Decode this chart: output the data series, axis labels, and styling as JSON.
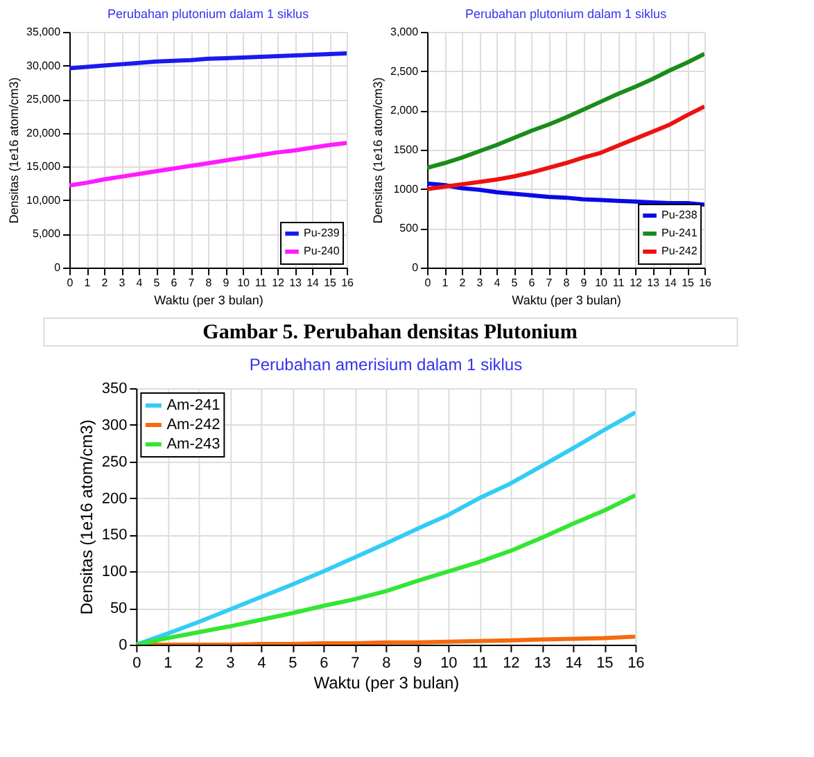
{
  "chart_data": [
    {
      "type": "line",
      "title": "Perubahan plutonium dalam 1 siklus",
      "xlabel": "Waktu (per 3 bulan)",
      "ylabel": "Densitas (1e16 atom/cm3)",
      "annotations": [
        "Gambar 5.  Perubahan densitas Plutonium"
      ],
      "x": [
        0,
        1,
        2,
        3,
        4,
        5,
        6,
        7,
        8,
        9,
        10,
        11,
        12,
        13,
        14,
        15,
        16
      ],
      "series": [
        {
          "name": "Pu-239",
          "color": "#1a1aee",
          "values": [
            29600,
            29800,
            30000,
            30200,
            30400,
            30600,
            30700,
            30800,
            31000,
            31100,
            31200,
            31300,
            31400,
            31500,
            31600,
            31700,
            31800
          ]
        },
        {
          "name": "Pu-240",
          "color": "#ff1aff",
          "values": [
            12200,
            12600,
            13100,
            13500,
            13900,
            14300,
            14700,
            15100,
            15500,
            15900,
            16300,
            16700,
            17100,
            17400,
            17800,
            18200,
            18500
          ]
        }
      ],
      "xlim": [
        0,
        16
      ],
      "xticks": [
        0,
        1,
        2,
        3,
        4,
        5,
        6,
        7,
        8,
        9,
        10,
        11,
        12,
        13,
        14,
        15,
        16
      ],
      "ylim": [
        0,
        35000
      ],
      "yticks": [
        0,
        {
          "value": 5000,
          "label": "5,000"
        },
        {
          "value": 10000,
          "label": "10,000"
        },
        {
          "value": 15000,
          "label": "15,000"
        },
        {
          "value": 20000,
          "label": "20,000"
        },
        {
          "value": 25000,
          "label": "25,000"
        },
        {
          "value": 30000,
          "label": "30,000"
        },
        {
          "value": 35000,
          "label": "35,000"
        }
      ],
      "grid": true,
      "legend": "bottom right"
    },
    {
      "type": "line",
      "title": "Perubahan plutonium dalam 1 siklus",
      "xlabel": "Waktu (per 3 bulan)",
      "ylabel": "Densitas (1e16 atom/cm3)",
      "x": [
        0,
        1,
        2,
        3,
        4,
        5,
        6,
        7,
        8,
        9,
        10,
        11,
        12,
        13,
        14,
        15,
        16
      ],
      "series": [
        {
          "name": "Pu-238",
          "color": "#0a0ae6",
          "values": [
            1070,
            1050,
            1010,
            990,
            960,
            940,
            920,
            900,
            890,
            870,
            860,
            850,
            840,
            830,
            820,
            820,
            800
          ]
        },
        {
          "name": "Pu-241",
          "color": "#1a8c1a",
          "values": [
            1270,
            1330,
            1400,
            1480,
            1560,
            1650,
            1740,
            1820,
            1910,
            2010,
            2110,
            2210,
            2300,
            2400,
            2510,
            2610,
            2720
          ]
        },
        {
          "name": "Pu-242",
          "color": "#ee1111",
          "values": [
            1000,
            1030,
            1060,
            1090,
            1120,
            1160,
            1210,
            1270,
            1330,
            1400,
            1460,
            1550,
            1640,
            1730,
            1820,
            1940,
            2050
          ]
        }
      ],
      "xlim": [
        0,
        16
      ],
      "xticks": [
        0,
        1,
        2,
        3,
        4,
        5,
        6,
        7,
        8,
        9,
        10,
        11,
        12,
        13,
        14,
        15,
        16
      ],
      "ylim": [
        0,
        3000
      ],
      "yticks": [
        0,
        500,
        1000,
        1500,
        {
          "value": 2000,
          "label": "2,000"
        },
        {
          "value": 2500,
          "label": "2,500"
        },
        {
          "value": 3000,
          "label": "3,000"
        }
      ],
      "grid": true,
      "legend": "bottom right"
    },
    {
      "type": "line",
      "title": "Perubahan amerisium dalam 1 siklus",
      "xlabel": "Waktu (per 3 bulan)",
      "ylabel": "Densitas (1e16 atom/cm3)",
      "x": [
        0,
        1,
        2,
        3,
        4,
        5,
        6,
        7,
        8,
        9,
        10,
        11,
        12,
        13,
        14,
        15,
        16
      ],
      "series": [
        {
          "name": "Am-241",
          "color": "#33ccf5",
          "values": [
            0,
            15,
            31,
            48,
            65,
            82,
            100,
            119,
            138,
            158,
            177,
            200,
            220,
            244,
            268,
            293,
            317
          ]
        },
        {
          "name": "Am-242",
          "color": "#f56a10",
          "values": [
            0,
            0,
            0,
            0,
            1,
            1,
            2,
            2,
            3,
            3,
            4,
            5,
            6,
            7,
            8,
            9,
            11
          ]
        },
        {
          "name": "Am-243",
          "color": "#33e633",
          "values": [
            0,
            9,
            17,
            25,
            34,
            43,
            53,
            62,
            73,
            87,
            100,
            113,
            128,
            146,
            165,
            183,
            204
          ]
        }
      ],
      "xlim": [
        0,
        16
      ],
      "xticks": [
        0,
        1,
        2,
        3,
        4,
        5,
        6,
        7,
        8,
        9,
        10,
        11,
        12,
        13,
        14,
        15,
        16
      ],
      "ylim": [
        0,
        350
      ],
      "yticks": [
        0,
        50,
        100,
        150,
        200,
        250,
        300,
        350
      ],
      "grid": true,
      "legend": "top left"
    }
  ]
}
